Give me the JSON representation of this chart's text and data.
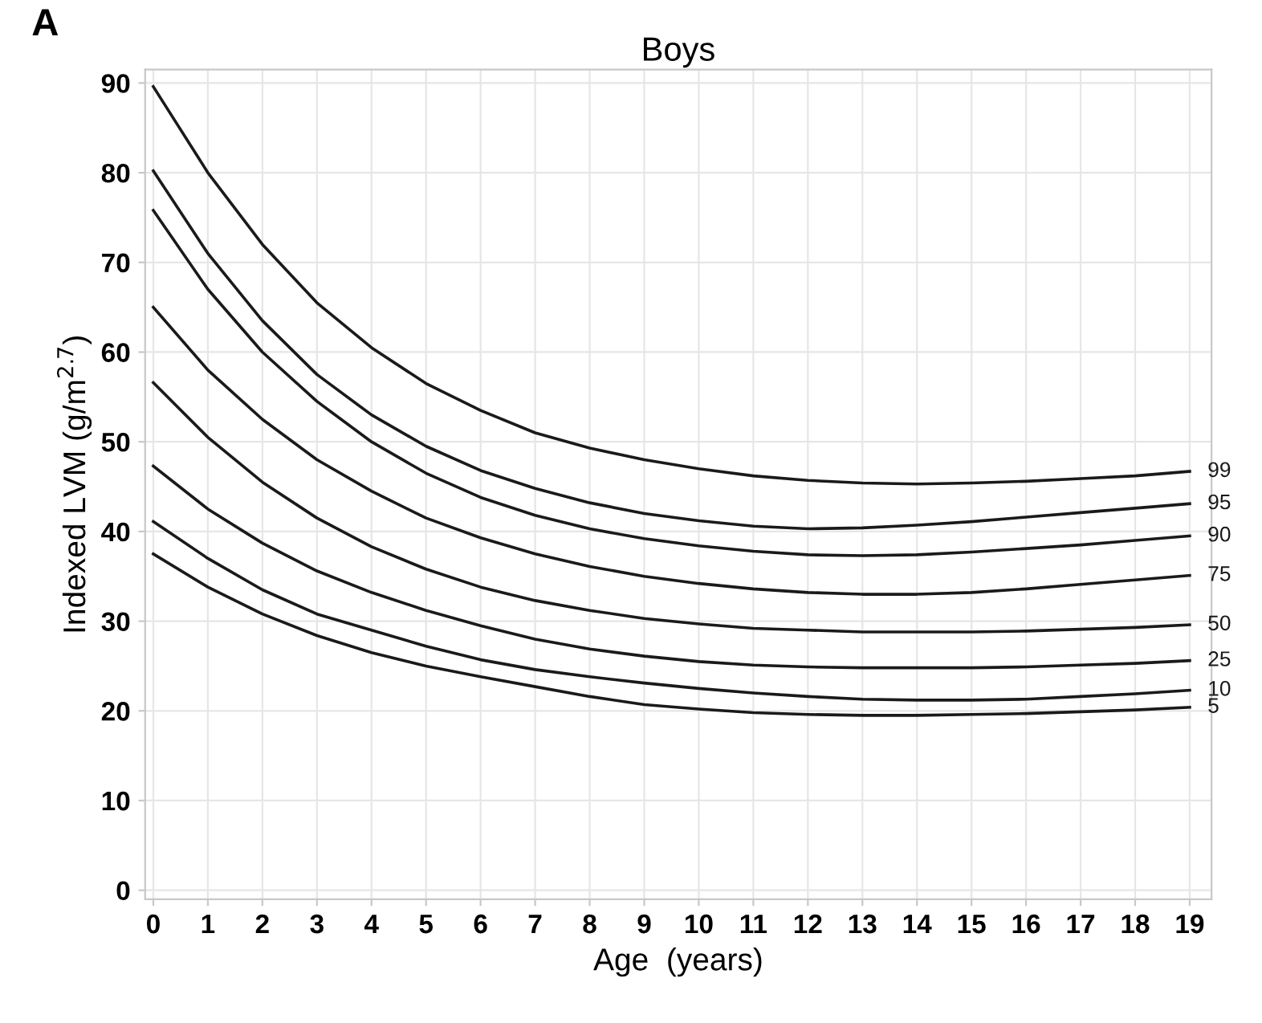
{
  "chart_data": {
    "type": "line",
    "title": "Boys",
    "xlabel": "Age  (years)",
    "ylabel": "Indexed LVM (g/m$^{2.7}$)",
    "annotations": [
      "A"
    ],
    "x": [
      0,
      1,
      2,
      3,
      4,
      5,
      6,
      7,
      8,
      9,
      10,
      11,
      12,
      13,
      14,
      15,
      16,
      17,
      18,
      19
    ],
    "series": [
      {
        "name": "99",
        "color": "#1a1a1a",
        "values": [
          89.6,
          80,
          72,
          65.5,
          60.5,
          56.5,
          53.5,
          51,
          49.3,
          48,
          47,
          46.2,
          45.7,
          45.4,
          45.3,
          45.4,
          45.6,
          45.9,
          46.2,
          46.7
        ]
      },
      {
        "name": "95",
        "color": "#1a1a1a",
        "values": [
          80.2,
          71,
          63.5,
          57.5,
          53,
          49.5,
          46.8,
          44.8,
          43.2,
          42,
          41.2,
          40.6,
          40.3,
          40.4,
          40.7,
          41.1,
          41.6,
          42.1,
          42.6,
          43.1
        ]
      },
      {
        "name": "90",
        "color": "#1a1a1a",
        "values": [
          75.8,
          67,
          60,
          54.5,
          50,
          46.5,
          43.8,
          41.8,
          40.3,
          39.2,
          38.4,
          37.8,
          37.4,
          37.3,
          37.4,
          37.7,
          38.1,
          38.5,
          39,
          39.5
        ]
      },
      {
        "name": "75",
        "color": "#1a1a1a",
        "values": [
          65,
          58,
          52.5,
          48,
          44.5,
          41.5,
          39.3,
          37.5,
          36.1,
          35,
          34.2,
          33.6,
          33.2,
          33,
          33,
          33.2,
          33.6,
          34.1,
          34.6,
          35.1
        ]
      },
      {
        "name": "50",
        "color": "#1a1a1a",
        "values": [
          56.6,
          50.5,
          45.5,
          41.5,
          38.3,
          35.8,
          33.8,
          32.3,
          31.2,
          30.3,
          29.7,
          29.2,
          29,
          28.8,
          28.8,
          28.8,
          28.9,
          29.1,
          29.3,
          29.6
        ]
      },
      {
        "name": "25",
        "color": "#1a1a1a",
        "values": [
          47.3,
          42.5,
          38.7,
          35.6,
          33.2,
          31.2,
          29.5,
          28,
          26.9,
          26.1,
          25.5,
          25.1,
          24.9,
          24.8,
          24.8,
          24.8,
          24.9,
          25.1,
          25.3,
          25.6
        ]
      },
      {
        "name": "10",
        "color": "#1a1a1a",
        "values": [
          41.1,
          37,
          33.5,
          30.8,
          29,
          27.2,
          25.7,
          24.6,
          23.8,
          23.1,
          22.5,
          22,
          21.6,
          21.3,
          21.2,
          21.2,
          21.3,
          21.6,
          21.9,
          22.3
        ]
      },
      {
        "name": "5",
        "color": "#1a1a1a",
        "values": [
          37.5,
          33.8,
          30.8,
          28.4,
          26.5,
          25,
          23.8,
          22.7,
          21.6,
          20.7,
          20.2,
          19.8,
          19.6,
          19.5,
          19.5,
          19.6,
          19.7,
          19.9,
          20.1,
          20.4
        ]
      }
    ],
    "xlim": [
      -0.15,
      19.4
    ],
    "ylim": [
      -1,
      91.5
    ],
    "xticks": [
      0,
      1,
      2,
      3,
      4,
      5,
      6,
      7,
      8,
      9,
      10,
      11,
      12,
      13,
      14,
      15,
      16,
      17,
      18,
      19
    ],
    "yticks": [
      0,
      10,
      20,
      30,
      40,
      50,
      60,
      70,
      80,
      90
    ],
    "grid": true,
    "legend": false,
    "marker": "none",
    "line_style": "solid"
  }
}
